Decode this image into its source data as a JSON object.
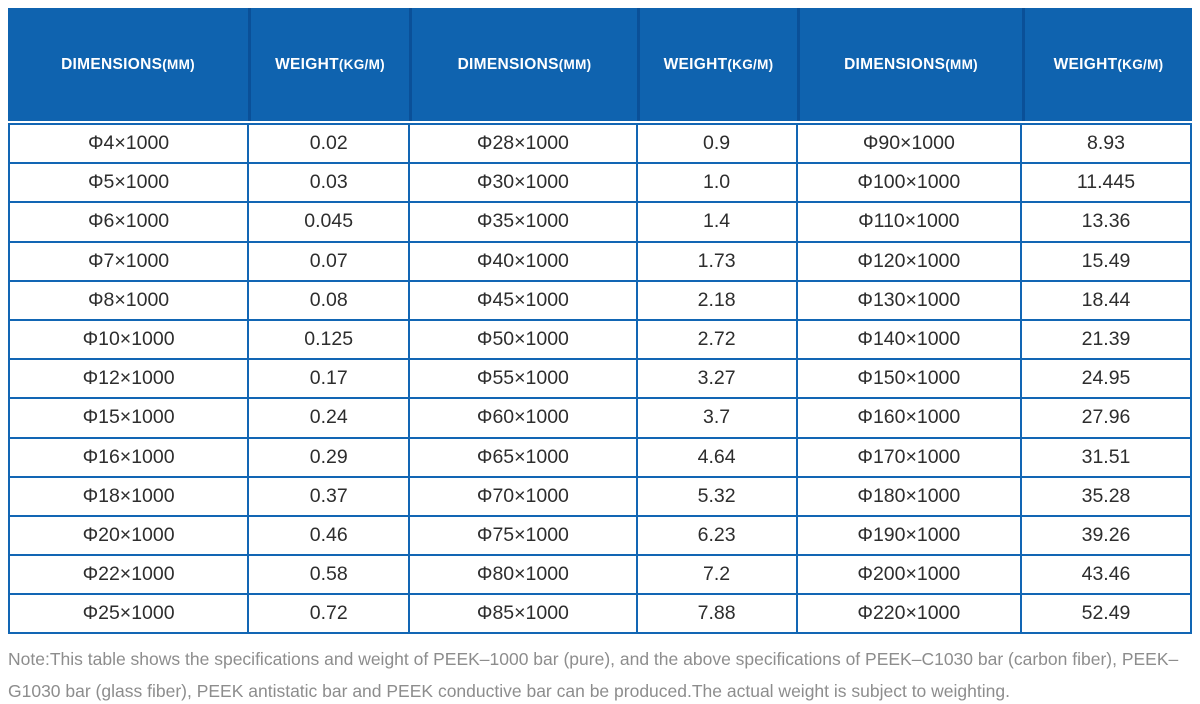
{
  "colors": {
    "header_bg": "#0f63af",
    "header_divider": "#0a5098",
    "grid_border": "#1266b4",
    "header_text": "#ffffff",
    "body_text": "#2d2d2d",
    "note_text": "#8d8d8d",
    "page_bg": "#ffffff"
  },
  "table": {
    "columns": [
      {
        "label": "DIMENSIONS",
        "unit": "(MM)"
      },
      {
        "label": "WEIGHT",
        "unit": "(KG/M)"
      },
      {
        "label": "DIMENSIONS",
        "unit": "(MM)"
      },
      {
        "label": "WEIGHT",
        "unit": "(KG/M)"
      },
      {
        "label": "DIMENSIONS",
        "unit": "(MM)"
      },
      {
        "label": "WEIGHT",
        "unit": "(KG/M)"
      }
    ],
    "rows": [
      [
        "Φ4×1000",
        "0.02",
        "Φ28×1000",
        "0.9",
        "Φ90×1000",
        "8.93"
      ],
      [
        "Φ5×1000",
        "0.03",
        "Φ30×1000",
        "1.0",
        "Φ100×1000",
        "11.445"
      ],
      [
        "Φ6×1000",
        "0.045",
        "Φ35×1000",
        "1.4",
        "Φ110×1000",
        "13.36"
      ],
      [
        "Φ7×1000",
        "0.07",
        "Φ40×1000",
        "1.73",
        "Φ120×1000",
        "15.49"
      ],
      [
        "Φ8×1000",
        "0.08",
        "Φ45×1000",
        "2.18",
        "Φ130×1000",
        "18.44"
      ],
      [
        "Φ10×1000",
        "0.125",
        "Φ50×1000",
        "2.72",
        "Φ140×1000",
        "21.39"
      ],
      [
        "Φ12×1000",
        "0.17",
        "Φ55×1000",
        "3.27",
        "Φ150×1000",
        "24.95"
      ],
      [
        "Φ15×1000",
        "0.24",
        "Φ60×1000",
        "3.7",
        "Φ160×1000",
        "27.96"
      ],
      [
        "Φ16×1000",
        "0.29",
        "Φ65×1000",
        "4.64",
        "Φ170×1000",
        "31.51"
      ],
      [
        "Φ18×1000",
        "0.37",
        "Φ70×1000",
        "5.32",
        "Φ180×1000",
        "35.28"
      ],
      [
        "Φ20×1000",
        "0.46",
        "Φ75×1000",
        "6.23",
        "Φ190×1000",
        "39.26"
      ],
      [
        "Φ22×1000",
        "0.58",
        "Φ80×1000",
        "7.2",
        "Φ200×1000",
        "43.46"
      ],
      [
        "Φ25×1000",
        "0.72",
        "Φ85×1000",
        "7.88",
        "Φ220×1000",
        "52.49"
      ]
    ]
  },
  "note": "Note:This table shows the specifications and weight of PEEK–1000 bar (pure), and the above specifications of PEEK–C1030 bar (carbon fiber), PEEK–G1030 bar (glass fiber), PEEK antistatic bar and PEEK conductive bar can be produced.The actual weight is subject to weighting."
}
